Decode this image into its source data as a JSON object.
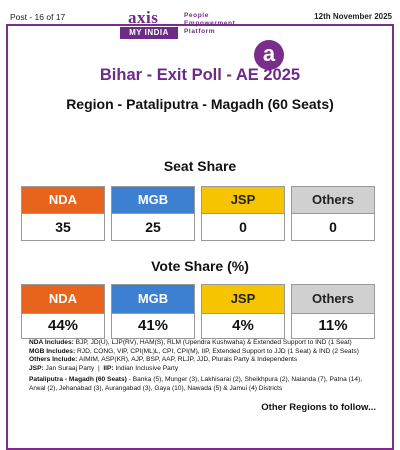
{
  "header": {
    "post_label": "Post - 16 of 17",
    "date": "12th November 2025",
    "logo": {
      "axis": "axis",
      "myindia": "MY INDIA",
      "tagline": [
        "People",
        "Empowerment",
        "Platform"
      ],
      "badge": "a"
    }
  },
  "title": "Bihar - Exit Poll - AE 2025",
  "region": "Region - Pataliputra - Magadh (60 Seats)",
  "seat_share": {
    "heading": "Seat Share",
    "cards": [
      {
        "label": "NDA",
        "value": "35",
        "color": "#e8631c"
      },
      {
        "label": "MGB",
        "value": "25",
        "color": "#3d80d1"
      },
      {
        "label": "JSP",
        "value": "0",
        "color": "#f6c400"
      },
      {
        "label": "Others",
        "value": "0",
        "color": "#d0d0d0"
      }
    ]
  },
  "vote_share": {
    "heading": "Vote Share (%)",
    "cards": [
      {
        "label": "NDA",
        "value": "44%",
        "color": "#e8631c"
      },
      {
        "label": "MGB",
        "value": "41%",
        "color": "#3d80d1"
      },
      {
        "label": "JSP",
        "value": "4%",
        "color": "#f6c400"
      },
      {
        "label": "Others",
        "value": "11%",
        "color": "#d0d0d0"
      }
    ]
  },
  "notes": {
    "nda_key": "NDA Includes:",
    "nda_text": "BJP, JD(U), LJP(RV), HAM(S), RLM (Upendra Kushwaha) & Extended Support to IND (1 Seat)",
    "mgb_key": "MGB Includes:",
    "mgb_text": "RJD, CONG, VIP, CPI(ML)L, CPI, CPI(M), IIP, Extended Support to JJD (1 Seat) & IND (2 Seats)",
    "others_key": "Others Include:",
    "others_text": "AIMIM, ASP(KR), AJP, BSP, AAP, RLJP, JJD, Plurals Party & Independents",
    "jsp_key": "JSP:",
    "jsp_text": "Jan Suraaj Party",
    "sep": "|",
    "iip_key": "IIP:",
    "iip_text": "Indian Inclusive Party",
    "region_key": "Pataliputra - Magadh (60 Seats)",
    "region_text_1": " - Banka (5), Munger (3), Lakhisarai (2), Sheikhpura (2), Nalanda (7), Patna (14),",
    "region_text_2": "Arwal (2), Jehanabad (3), Aurangabad (3), Gaya (10), Nawada (5) & Jamui (4) Districts"
  },
  "footer": {
    "follow": "Other Regions to follow..."
  }
}
